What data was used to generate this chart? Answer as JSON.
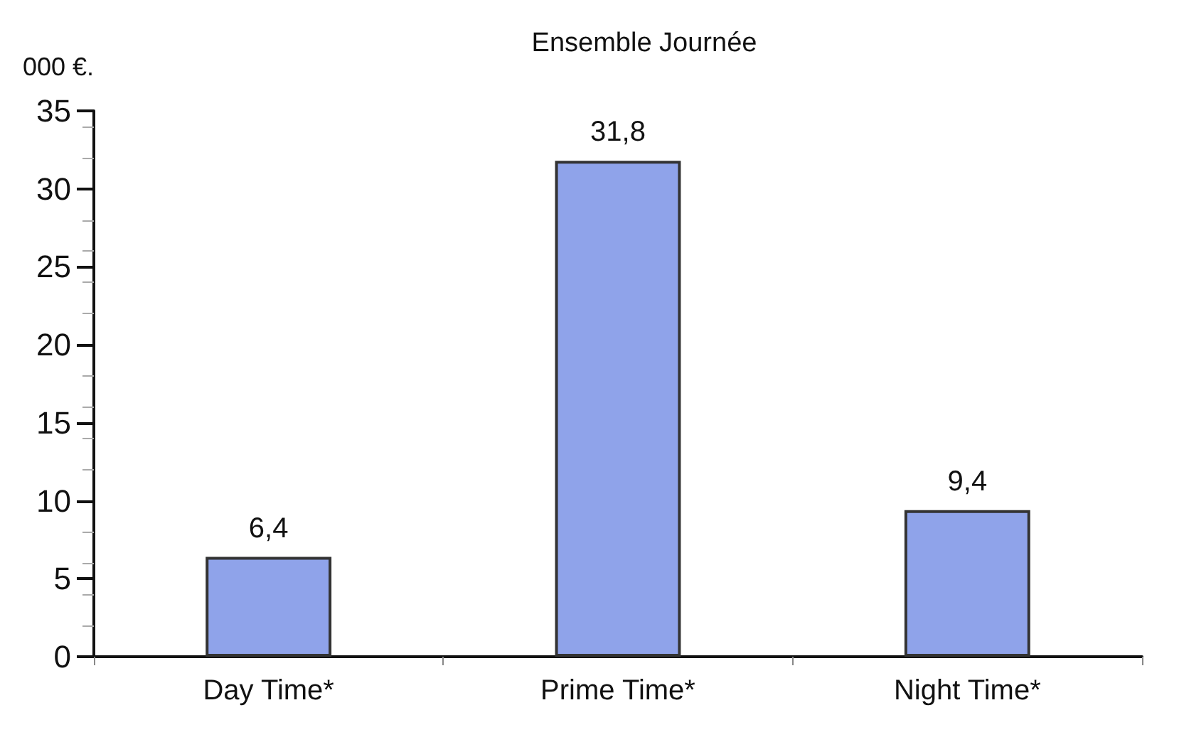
{
  "chart_data": {
    "type": "bar",
    "title": "Ensemble Journée",
    "ylabel": "000 €.",
    "categories": [
      "Day Time*",
      "Prime Time*",
      "Night Time*"
    ],
    "values": [
      6.4,
      31.8,
      9.4
    ],
    "value_labels": [
      "6,4",
      "31,8",
      "9,4"
    ],
    "color": "#8fa3ea",
    "ylim": [
      0,
      35
    ],
    "yticks": [
      0,
      5,
      10,
      15,
      20,
      25,
      30,
      35
    ]
  }
}
